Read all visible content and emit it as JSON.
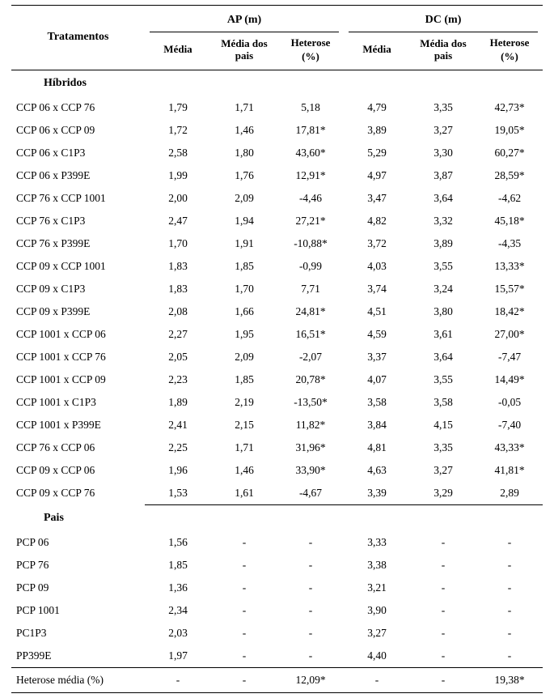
{
  "header": {
    "tratamentos": "Tratamentos",
    "group_ap": "AP (m)",
    "group_dc": "DC (m)",
    "media": "Média",
    "media_pais": "Média dos pais",
    "heterose": "Heterose",
    "pct": "(%)"
  },
  "sections": {
    "hibridos": "Híbridos",
    "pais": "Pais"
  },
  "hybrids": [
    {
      "name": "CCP 06 x CCP 76",
      "ap_m": "1,79",
      "ap_mp": "1,71",
      "ap_h": "5,18",
      "dc_m": "4,79",
      "dc_mp": "3,35",
      "dc_h": "42,73*"
    },
    {
      "name": "CCP 06 x CCP 09",
      "ap_m": "1,72",
      "ap_mp": "1,46",
      "ap_h": "17,81*",
      "dc_m": "3,89",
      "dc_mp": "3,27",
      "dc_h": "19,05*"
    },
    {
      "name": "CCP 06 x C1P3",
      "ap_m": "2,58",
      "ap_mp": "1,80",
      "ap_h": "43,60*",
      "dc_m": "5,29",
      "dc_mp": "3,30",
      "dc_h": "60,27*"
    },
    {
      "name": "CCP 06 x P399E",
      "ap_m": "1,99",
      "ap_mp": "1,76",
      "ap_h": "12,91*",
      "dc_m": "4,97",
      "dc_mp": "3,87",
      "dc_h": "28,59*"
    },
    {
      "name": "CCP 76 x CCP 1001",
      "ap_m": "2,00",
      "ap_mp": "2,09",
      "ap_h": "-4,46",
      "dc_m": "3,47",
      "dc_mp": "3,64",
      "dc_h": "-4,62"
    },
    {
      "name": "CCP 76 x C1P3",
      "ap_m": "2,47",
      "ap_mp": "1,94",
      "ap_h": "27,21*",
      "dc_m": "4,82",
      "dc_mp": "3,32",
      "dc_h": "45,18*"
    },
    {
      "name": "CCP 76 x P399E",
      "ap_m": "1,70",
      "ap_mp": "1,91",
      "ap_h": "-10,88*",
      "dc_m": "3,72",
      "dc_mp": "3,89",
      "dc_h": "-4,35"
    },
    {
      "name": "CCP 09 x CCP 1001",
      "ap_m": "1,83",
      "ap_mp": "1,85",
      "ap_h": "-0,99",
      "dc_m": "4,03",
      "dc_mp": "3,55",
      "dc_h": "13,33*"
    },
    {
      "name": "CCP 09 x C1P3",
      "ap_m": "1,83",
      "ap_mp": "1,70",
      "ap_h": "7,71",
      "dc_m": "3,74",
      "dc_mp": "3,24",
      "dc_h": "15,57*"
    },
    {
      "name": "CCP 09 x P399E",
      "ap_m": "2,08",
      "ap_mp": "1,66",
      "ap_h": "24,81*",
      "dc_m": "4,51",
      "dc_mp": "3,80",
      "dc_h": "18,42*"
    },
    {
      "name": "CCP 1001 x CCP 06",
      "ap_m": "2,27",
      "ap_mp": "1,95",
      "ap_h": "16,51*",
      "dc_m": "4,59",
      "dc_mp": "3,61",
      "dc_h": "27,00*"
    },
    {
      "name": "CCP 1001 x CCP 76",
      "ap_m": "2,05",
      "ap_mp": "2,09",
      "ap_h": "-2,07",
      "dc_m": "3,37",
      "dc_mp": "3,64",
      "dc_h": "-7,47"
    },
    {
      "name": "CCP 1001 x CCP 09",
      "ap_m": "2,23",
      "ap_mp": "1,85",
      "ap_h": "20,78*",
      "dc_m": "4,07",
      "dc_mp": "3,55",
      "dc_h": "14,49*"
    },
    {
      "name": "CCP 1001 x C1P3",
      "ap_m": "1,89",
      "ap_mp": "2,19",
      "ap_h": "-13,50*",
      "dc_m": "3,58",
      "dc_mp": "3,58",
      "dc_h": "-0,05"
    },
    {
      "name": "CCP 1001 x P399E",
      "ap_m": "2,41",
      "ap_mp": "2,15",
      "ap_h": "11,82*",
      "dc_m": "3,84",
      "dc_mp": "4,15",
      "dc_h": "-7,40"
    },
    {
      "name": "CCP 76 x CCP 06",
      "ap_m": "2,25",
      "ap_mp": "1,71",
      "ap_h": "31,96*",
      "dc_m": "4,81",
      "dc_mp": "3,35",
      "dc_h": "43,33*"
    },
    {
      "name": "CCP 09 x CCP 06",
      "ap_m": "1,96",
      "ap_mp": "1,46",
      "ap_h": "33,90*",
      "dc_m": "4,63",
      "dc_mp": "3,27",
      "dc_h": "41,81*"
    },
    {
      "name": "CCP 09 x CCP 76",
      "ap_m": "1,53",
      "ap_mp": "1,61",
      "ap_h": "-4,67",
      "dc_m": "3,39",
      "dc_mp": "3,29",
      "dc_h": "2,89"
    }
  ],
  "parents": [
    {
      "name": "PCP 06",
      "ap_m": "1,56",
      "ap_mp": "-",
      "ap_h": "-",
      "dc_m": "3,33",
      "dc_mp": "-",
      "dc_h": "-"
    },
    {
      "name": "PCP 76",
      "ap_m": "1,85",
      "ap_mp": "-",
      "ap_h": "-",
      "dc_m": "3,38",
      "dc_mp": "-",
      "dc_h": "-"
    },
    {
      "name": "PCP 09",
      "ap_m": "1,36",
      "ap_mp": "-",
      "ap_h": "-",
      "dc_m": "3,21",
      "dc_mp": "-",
      "dc_h": "-"
    },
    {
      "name": "PCP 1001",
      "ap_m": "2,34",
      "ap_mp": "-",
      "ap_h": "-",
      "dc_m": "3,90",
      "dc_mp": "-",
      "dc_h": "-"
    },
    {
      "name": "PC1P3",
      "ap_m": "2,03",
      "ap_mp": "-",
      "ap_h": "-",
      "dc_m": "3,27",
      "dc_mp": "-",
      "dc_h": "-"
    },
    {
      "name": "PP399E",
      "ap_m": "1,97",
      "ap_mp": "-",
      "ap_h": "-",
      "dc_m": "4,40",
      "dc_mp": "-",
      "dc_h": "-"
    }
  ],
  "footer": {
    "label": "Heterose média (%)",
    "ap_m": "-",
    "ap_mp": "-",
    "ap_h": "12,09*",
    "dc_m": "-",
    "dc_mp": "-",
    "dc_h": "19,38*"
  }
}
